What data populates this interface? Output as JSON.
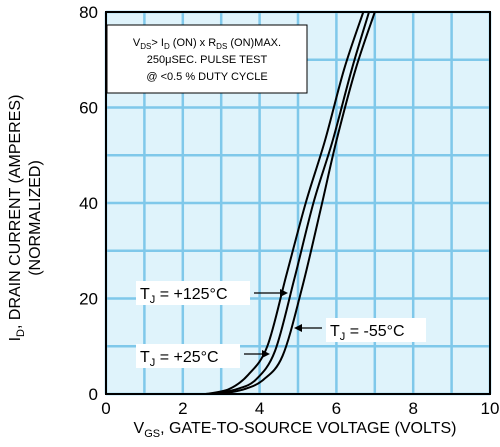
{
  "chart_data": {
    "type": "line",
    "title": "",
    "xlabel": "V_GS, GATE-TO-SOURCE VOLTAGE (VOLTS)",
    "ylabel": "I_D, DRAIN CURRENT (AMPERES) (NORMALIZED)",
    "xlabel_parts": {
      "main": "V",
      "sub": "GS",
      "rest": ", GATE-TO-SOURCE VOLTAGE (VOLTS)"
    },
    "ylabel_parts": {
      "main": "I",
      "sub": "D",
      "rest": ", DRAIN CURRENT (AMPERES)",
      "line2": "(NORMALIZED)"
    },
    "xlim": [
      0,
      10
    ],
    "ylim": [
      0,
      80
    ],
    "x_ticks": [
      0,
      2,
      4,
      6,
      8,
      10
    ],
    "y_ticks": [
      0,
      20,
      40,
      60,
      80
    ],
    "grid": true,
    "background_color": "#dff3fb",
    "grid_color": "#7fc8ea",
    "series": [
      {
        "name": "T_J = -55°C",
        "points": [
          [
            3.0,
            0
          ],
          [
            3.6,
            1
          ],
          [
            4.1,
            3
          ],
          [
            4.6,
            8
          ],
          [
            5.1,
            22
          ],
          [
            5.6,
            39
          ],
          [
            6.0,
            53
          ],
          [
            6.5,
            68
          ],
          [
            7.0,
            80
          ]
        ]
      },
      {
        "name": "T_J = +25°C",
        "points": [
          [
            2.8,
            0
          ],
          [
            3.4,
            1
          ],
          [
            3.9,
            3
          ],
          [
            4.4,
            9
          ],
          [
            4.9,
            24
          ],
          [
            5.4,
            40
          ],
          [
            5.9,
            53
          ],
          [
            6.4,
            68
          ],
          [
            6.85,
            80
          ]
        ]
      },
      {
        "name": "T_J = +125°C",
        "points": [
          [
            2.6,
            0
          ],
          [
            3.2,
            1
          ],
          [
            3.7,
            4
          ],
          [
            4.2,
            10
          ],
          [
            4.7,
            25
          ],
          [
            5.2,
            40
          ],
          [
            5.7,
            53
          ],
          [
            6.2,
            68
          ],
          [
            6.7,
            80
          ]
        ]
      }
    ],
    "note": {
      "line1": {
        "a": "V",
        "a_sub": "DS",
        "b": "> I",
        "b_sub": "D",
        "c": " (ON) x  R",
        "c_sub": "DS",
        "d": " (ON)MAX."
      },
      "line2": "250μSEC.  PULSE  TEST",
      "line3": "@ <0.5 % DUTY CYCLE"
    },
    "annotations": [
      {
        "main": "T",
        "sub": "J",
        "rest": " = +125°C"
      },
      {
        "main": "T",
        "sub": "J",
        "rest": " = -55°C"
      },
      {
        "main": "T",
        "sub": "J",
        "rest": " = +25°C"
      }
    ]
  }
}
